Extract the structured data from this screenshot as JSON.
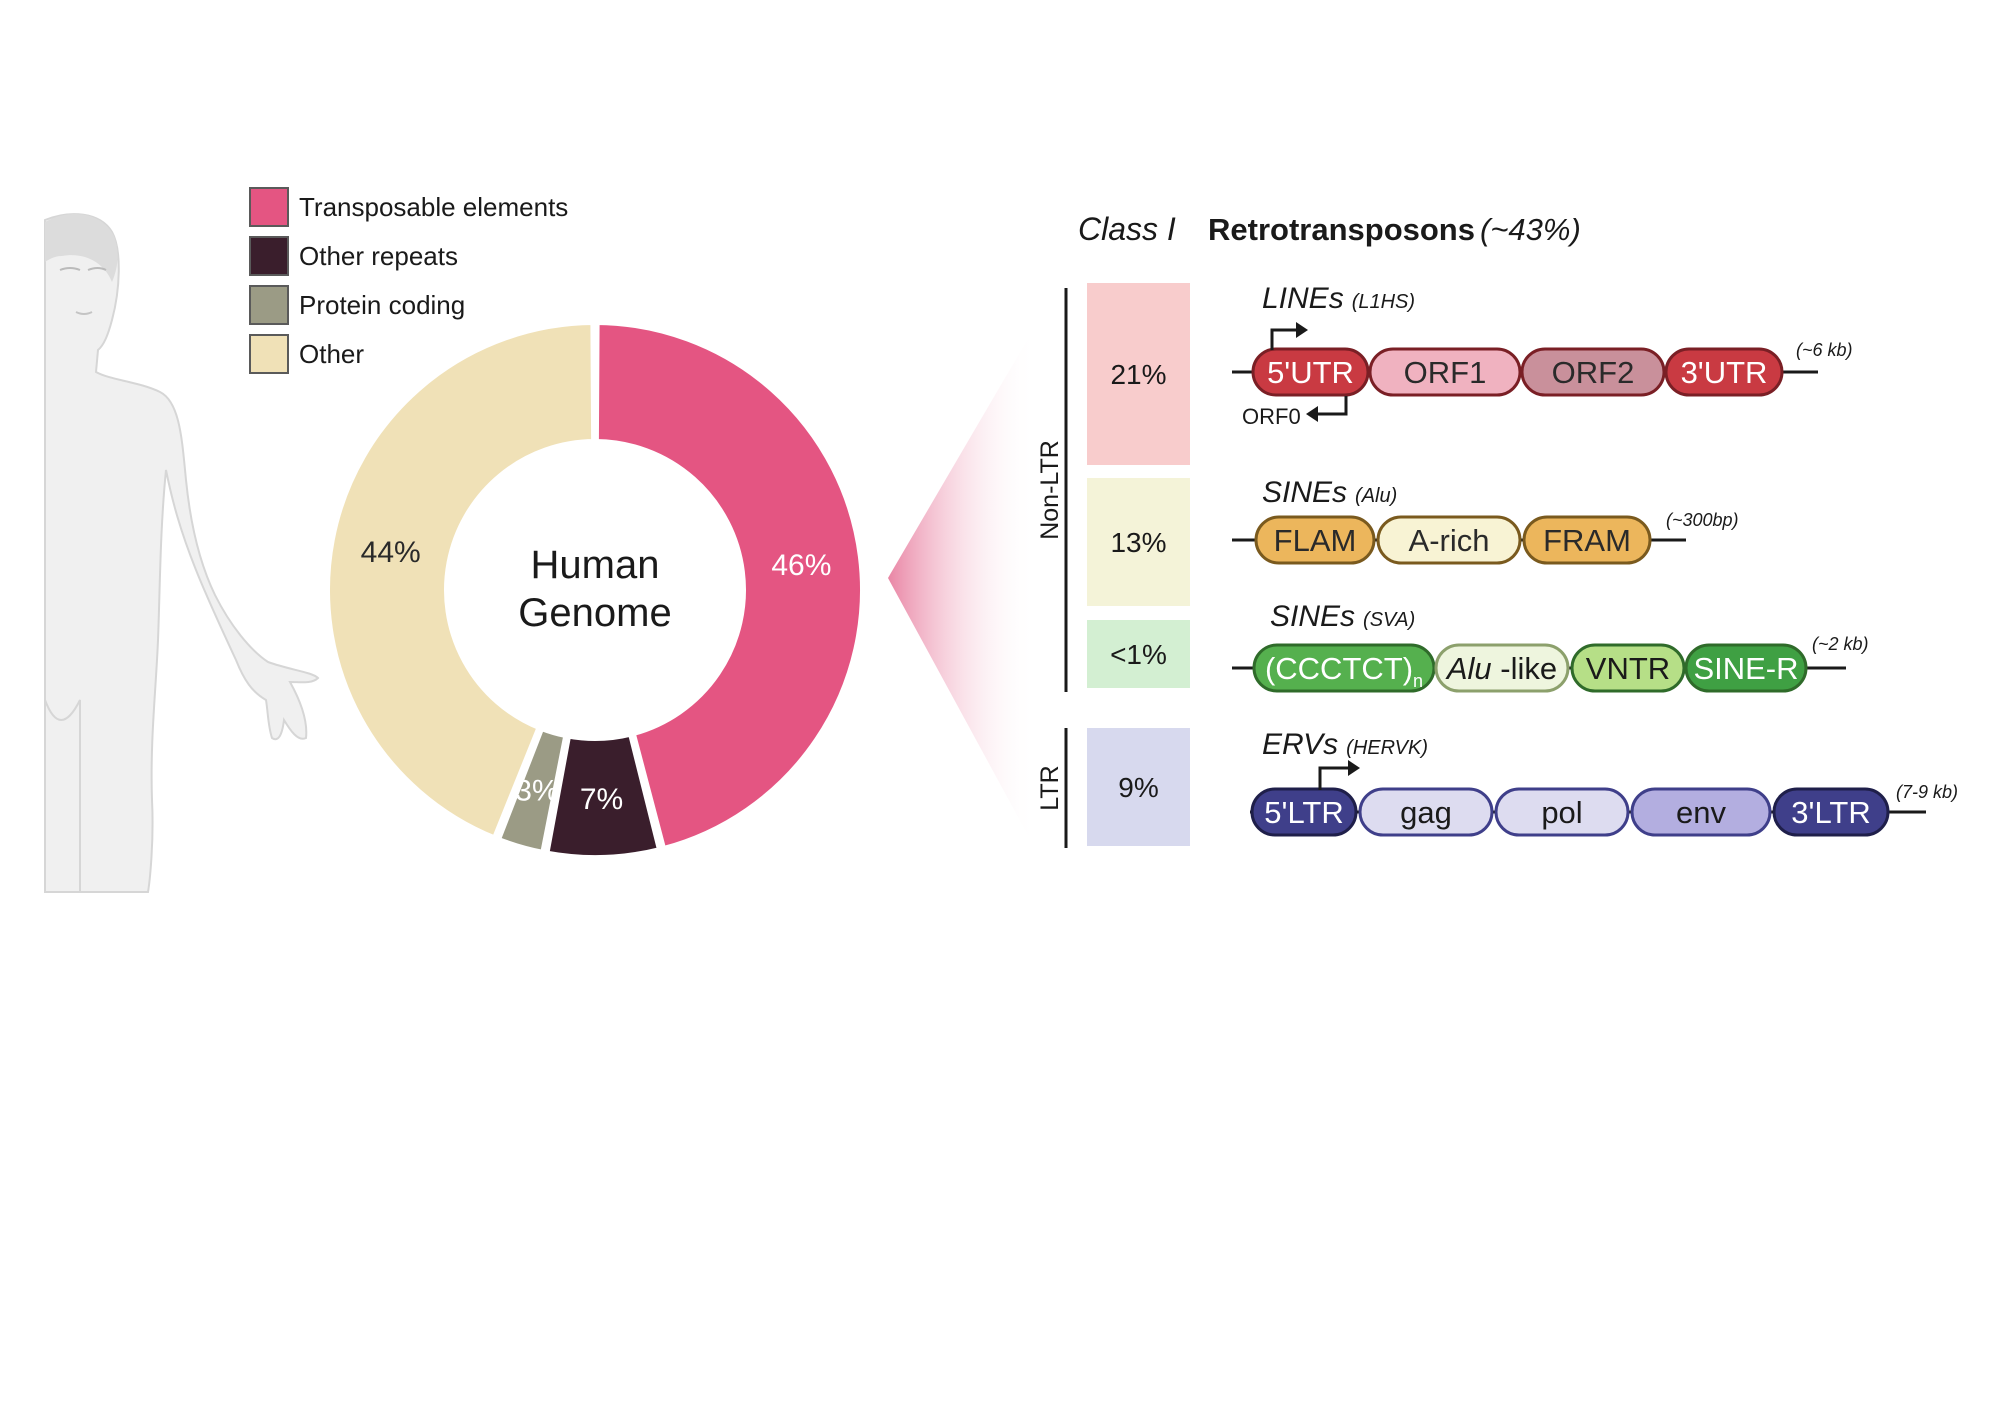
{
  "legend": [
    {
      "label": "Transposable elements",
      "color": "#e45582"
    },
    {
      "label": "Other repeats",
      "color": "#3a1e2c"
    },
    {
      "label": "Protein coding",
      "color": "#9b9b85"
    },
    {
      "label": "Other",
      "color": "#f0e1b7"
    }
  ],
  "donut": {
    "center_line1": "Human",
    "center_line2": "Genome",
    "slices": [
      {
        "label": "46%",
        "value": 46,
        "color": "#e45582",
        "text_color": "#ffffff"
      },
      {
        "label": "7%",
        "value": 7,
        "color": "#3a1e2c",
        "text_color": "#ffffff"
      },
      {
        "label": "3%",
        "value": 3,
        "color": "#9b9b85",
        "text_color": "#ffffff"
      },
      {
        "label": "44%",
        "value": 44,
        "color": "#f0e1b7",
        "text_color": "#2a2a2a"
      }
    ]
  },
  "header": {
    "class_label": "Class I",
    "title": "Retrotransposons",
    "percent": "(~43%)"
  },
  "groups": {
    "non_ltr": "Non-LTR",
    "ltr": "LTR"
  },
  "percent_boxes": [
    {
      "label": "21%",
      "color": "#f8cccc"
    },
    {
      "label": "13%",
      "color": "#f4f3d8"
    },
    {
      "label": "<1%",
      "color": "#d3efd2"
    },
    {
      "label": "9%",
      "color": "#d7d9ee"
    }
  ],
  "elements": [
    {
      "name": "LINEs",
      "subname": "(L1HS)",
      "size": "(~6 kb)",
      "extra_label": "ORF0",
      "segments": [
        {
          "label": "5'UTR",
          "fill": "#c93a42",
          "stroke": "#7a1f25",
          "text": "#ffffff"
        },
        {
          "label": "ORF1",
          "fill": "#f0b2c0",
          "stroke": "#7a1f25",
          "text": "#2a2a2a"
        },
        {
          "label": "ORF2",
          "fill": "#c9909b",
          "stroke": "#7a1f25",
          "text": "#2a2a2a"
        },
        {
          "label": "3'UTR",
          "fill": "#c93a42",
          "stroke": "#7a1f25",
          "text": "#ffffff"
        }
      ]
    },
    {
      "name": "SINEs",
      "subname": "(Alu)",
      "size": "(~300bp)",
      "segments": [
        {
          "label": "FLAM",
          "fill": "#ecb65c",
          "stroke": "#7a5a1e",
          "text": "#2a2a2a"
        },
        {
          "label": "A-rich",
          "fill": "#f8f3d4",
          "stroke": "#7a5a1e",
          "text": "#2a2a2a"
        },
        {
          "label": "FRAM",
          "fill": "#ecb65c",
          "stroke": "#7a5a1e",
          "text": "#2a2a2a"
        }
      ]
    },
    {
      "name": "SINEs",
      "subname": "(SVA)",
      "size": "(~2 kb)",
      "segments": [
        {
          "label": "(CCCTCT)",
          "sub": "n",
          "fill": "#55b04e",
          "stroke": "#2f6b2a",
          "text": "#ffffff"
        },
        {
          "label": "Alu",
          "suffix": " -like",
          "fill": "#eef5de",
          "stroke": "#8ca06c",
          "text": "#1a1a1a"
        },
        {
          "label": "VNTR",
          "fill": "#b6df87",
          "stroke": "#2f6b2a",
          "text": "#1a1a1a"
        },
        {
          "label": "SINE-R",
          "fill": "#3fa043",
          "stroke": "#2f6b2a",
          "text": "#ffffff"
        }
      ]
    },
    {
      "name": "ERVs",
      "subname": "(HERVK)",
      "size": "(7-9 kb)",
      "segments": [
        {
          "label": "5'LTR",
          "fill": "#3f3f8a",
          "stroke": "#1f1f4a",
          "text": "#ffffff"
        },
        {
          "label": "gag",
          "fill": "#dddcf0",
          "stroke": "#3f3f8a",
          "text": "#1a1a1a"
        },
        {
          "label": "pol",
          "fill": "#dddcf0",
          "stroke": "#3f3f8a",
          "text": "#1a1a1a"
        },
        {
          "label": "env",
          "fill": "#b3aee0",
          "stroke": "#3f3f8a",
          "text": "#1a1a1a"
        },
        {
          "label": "3'LTR",
          "fill": "#3f3f8a",
          "stroke": "#1f1f4a",
          "text": "#ffffff"
        }
      ]
    }
  ]
}
